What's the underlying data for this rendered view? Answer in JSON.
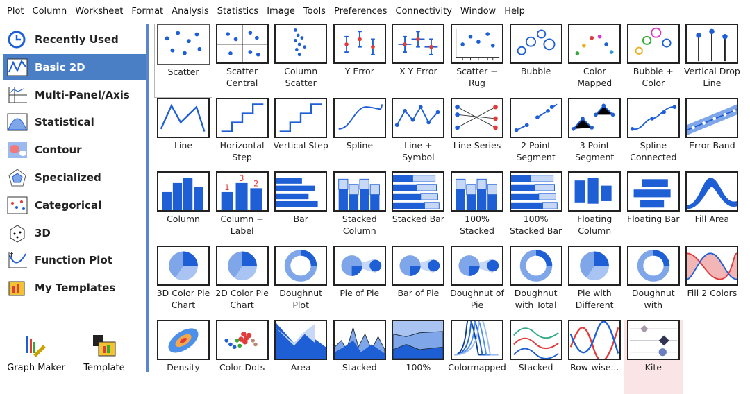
{
  "menu": [
    "Plot",
    "Column",
    "Worksheet",
    "Format",
    "Analysis",
    "Statistics",
    "Image",
    "Tools",
    "Preferences",
    "Connectivity",
    "Window",
    "Help"
  ],
  "sidebar": {
    "items": [
      {
        "label": "Recently Used",
        "icon": "clock-icon"
      },
      {
        "label": "Basic 2D",
        "icon": "line-chart-icon",
        "selected": true
      },
      {
        "label": "Multi-Panel/Axis",
        "icon": "multi-panel-icon"
      },
      {
        "label": "Statistical",
        "icon": "distribution-icon"
      },
      {
        "label": "Contour",
        "icon": "contour-icon"
      },
      {
        "label": "Specialized",
        "icon": "polar-icon"
      },
      {
        "label": "Categorical",
        "icon": "categorical-icon"
      },
      {
        "label": "3D",
        "icon": "cube-icon"
      },
      {
        "label": "Function Plot",
        "icon": "function-icon"
      },
      {
        "label": "My Templates",
        "icon": "templates-icon"
      }
    ],
    "bottom": [
      {
        "label": "Graph Maker",
        "icon": "graph-maker-icon"
      },
      {
        "label": "Template",
        "icon": "template-icon"
      }
    ]
  },
  "tiles": [
    [
      {
        "label": "Scatter",
        "kind": "scatter",
        "selected": true
      },
      {
        "label": "Scatter Central",
        "kind": "scentral"
      },
      {
        "label": "Column Scatter",
        "kind": "colscatter"
      },
      {
        "label": "Y Error",
        "kind": "yerr"
      },
      {
        "label": "X Y Error",
        "kind": "xyerr"
      },
      {
        "label": "Scatter + Rug",
        "kind": "rug"
      },
      {
        "label": "Bubble",
        "kind": "bubble"
      },
      {
        "label": "Color Mapped",
        "kind": "colormapped"
      },
      {
        "label": "Bubble + Color",
        "kind": "bubblecolor"
      },
      {
        "label": "Vertical Drop Line",
        "kind": "drop"
      }
    ],
    [
      {
        "label": "Line",
        "kind": "line"
      },
      {
        "label": "Horizontal Step",
        "kind": "step"
      },
      {
        "label": "Vertical Step",
        "kind": "step"
      },
      {
        "label": "Spline",
        "kind": "spline"
      },
      {
        "label": "Line + Symbol",
        "kind": "linesym"
      },
      {
        "label": "Line Series",
        "kind": "lineseries"
      },
      {
        "label": "2 Point Segment",
        "kind": "seg2"
      },
      {
        "label": "3 Point Segment",
        "kind": "seg3"
      },
      {
        "label": "Spline Connected",
        "kind": "splinecon"
      },
      {
        "label": "Error Band",
        "kind": "band"
      }
    ],
    [
      {
        "label": "Column",
        "kind": "column"
      },
      {
        "label": "Column + Label",
        "kind": "collabel"
      },
      {
        "label": "Bar",
        "kind": "bar"
      },
      {
        "label": "Stacked Column",
        "kind": "stackcol"
      },
      {
        "label": "Stacked Bar",
        "kind": "stackbar"
      },
      {
        "label": "100% Stacked",
        "kind": "stackcol"
      },
      {
        "label": "100% Stacked Bar",
        "kind": "stackbar"
      },
      {
        "label": "Floating Column",
        "kind": "floatcol"
      },
      {
        "label": "Floating Bar",
        "kind": "floatbar"
      },
      {
        "label": "Fill Area",
        "kind": "fillarea"
      }
    ],
    [
      {
        "label": "3D Color Pie Chart",
        "kind": "pie3d"
      },
      {
        "label": "2D Color Pie Chart",
        "kind": "pie"
      },
      {
        "label": "Doughnut Plot",
        "kind": "doughnut"
      },
      {
        "label": "Pie of Pie",
        "kind": "pieofpie"
      },
      {
        "label": "Bar of Pie",
        "kind": "pieofpie"
      },
      {
        "label": "Doughnut of Pie",
        "kind": "pieofpie"
      },
      {
        "label": "Doughnut with Total",
        "kind": "doughnut"
      },
      {
        "label": "Pie with Different",
        "kind": "pie"
      },
      {
        "label": "Doughnut with",
        "kind": "doughnut"
      },
      {
        "label": "Fill 2 Colors",
        "kind": "fill2"
      }
    ],
    [
      {
        "label": "Density",
        "kind": "density"
      },
      {
        "label": "Color Dots",
        "kind": "colordots"
      },
      {
        "label": "Area",
        "kind": "area"
      },
      {
        "label": "Stacked",
        "kind": "stackarea"
      },
      {
        "label": "100%",
        "kind": "area100"
      },
      {
        "label": "Colormapped",
        "kind": "colormappedline"
      },
      {
        "label": "Stacked",
        "kind": "stackedlines"
      },
      {
        "label": "Row-wise...",
        "kind": "rowwise"
      },
      {
        "label": "Kite",
        "kind": "kite",
        "highlight": true
      }
    ]
  ],
  "colors": {
    "accent": "#4a7fc6",
    "blue": "#1f5fd6",
    "red": "#e23b3b"
  }
}
